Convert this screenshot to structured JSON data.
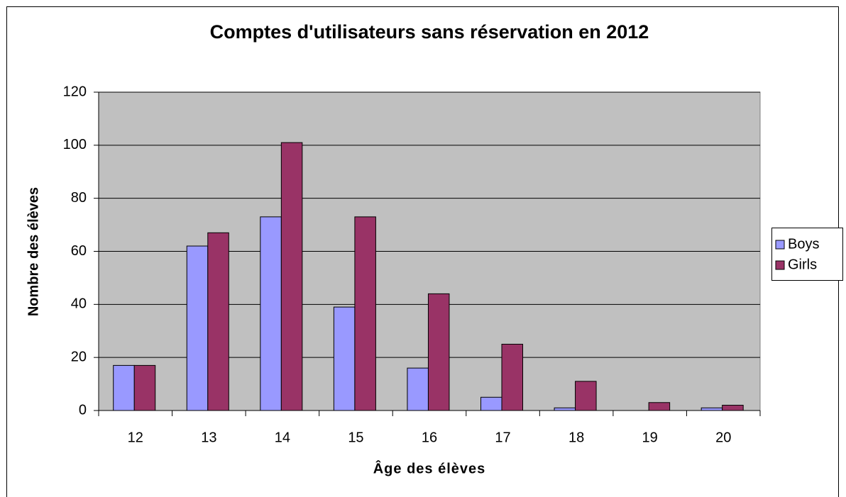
{
  "chart_data": {
    "type": "bar",
    "title": "Comptes d'utilisateurs sans réservation en 2012",
    "x_label": "Âge des élèves",
    "y_label": "Nombre des élèves",
    "categories": [
      "12",
      "13",
      "14",
      "15",
      "16",
      "17",
      "18",
      "19",
      "20"
    ],
    "series": [
      {
        "name": "Boys",
        "color": "#9999ff",
        "values": [
          17,
          62,
          73,
          39,
          16,
          5,
          1,
          0,
          1
        ]
      },
      {
        "name": "Girls",
        "color": "#993366",
        "values": [
          17,
          67,
          101,
          73,
          44,
          25,
          11,
          3,
          2
        ]
      }
    ],
    "ylim": [
      0,
      120
    ],
    "yticks": [
      0,
      20,
      40,
      60,
      80,
      100,
      120
    ],
    "grid": true,
    "legend": "right"
  }
}
